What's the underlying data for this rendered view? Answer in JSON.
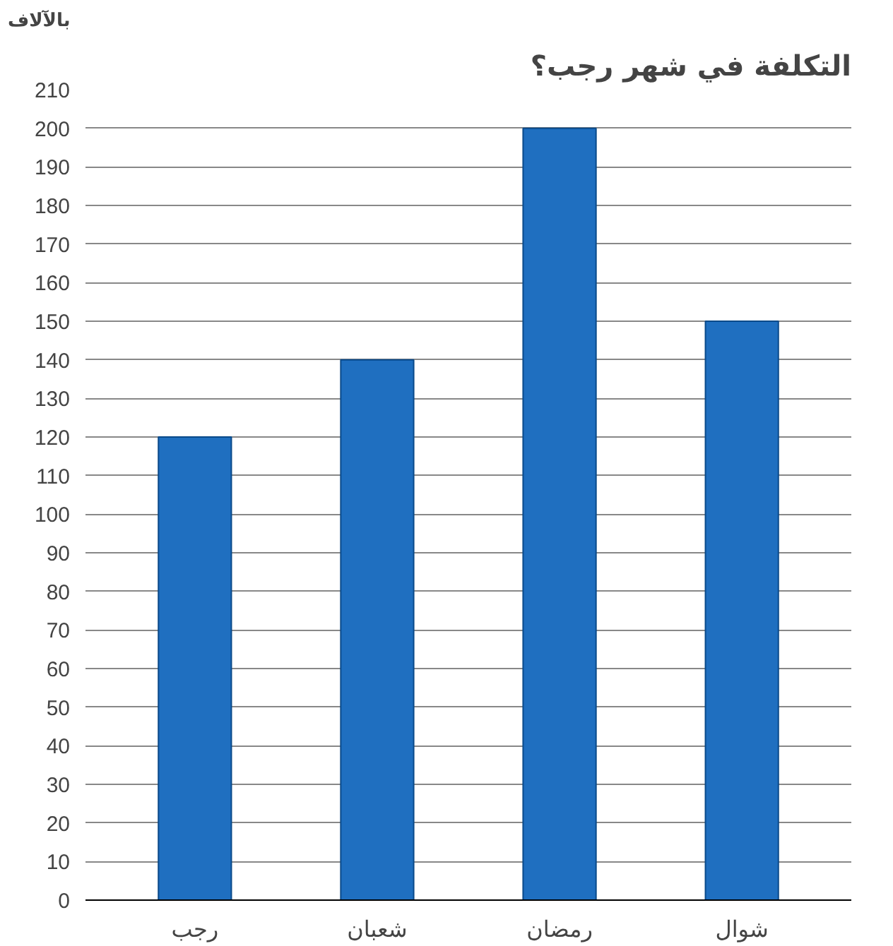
{
  "chart_data": {
    "type": "bar",
    "title": "التكلفة في شهر رجب؟",
    "ylabel": "بالآلاف",
    "categories": [
      "رجب",
      "شعبان",
      "رمضان",
      "شوال"
    ],
    "values": [
      120,
      140,
      200,
      150
    ],
    "color": "#1f6fc0",
    "ylim": [
      0,
      210
    ],
    "yticks": [
      0,
      10,
      20,
      30,
      40,
      50,
      60,
      70,
      80,
      90,
      100,
      110,
      120,
      130,
      140,
      150,
      160,
      170,
      180,
      190,
      200,
      210
    ],
    "grid": "y"
  }
}
